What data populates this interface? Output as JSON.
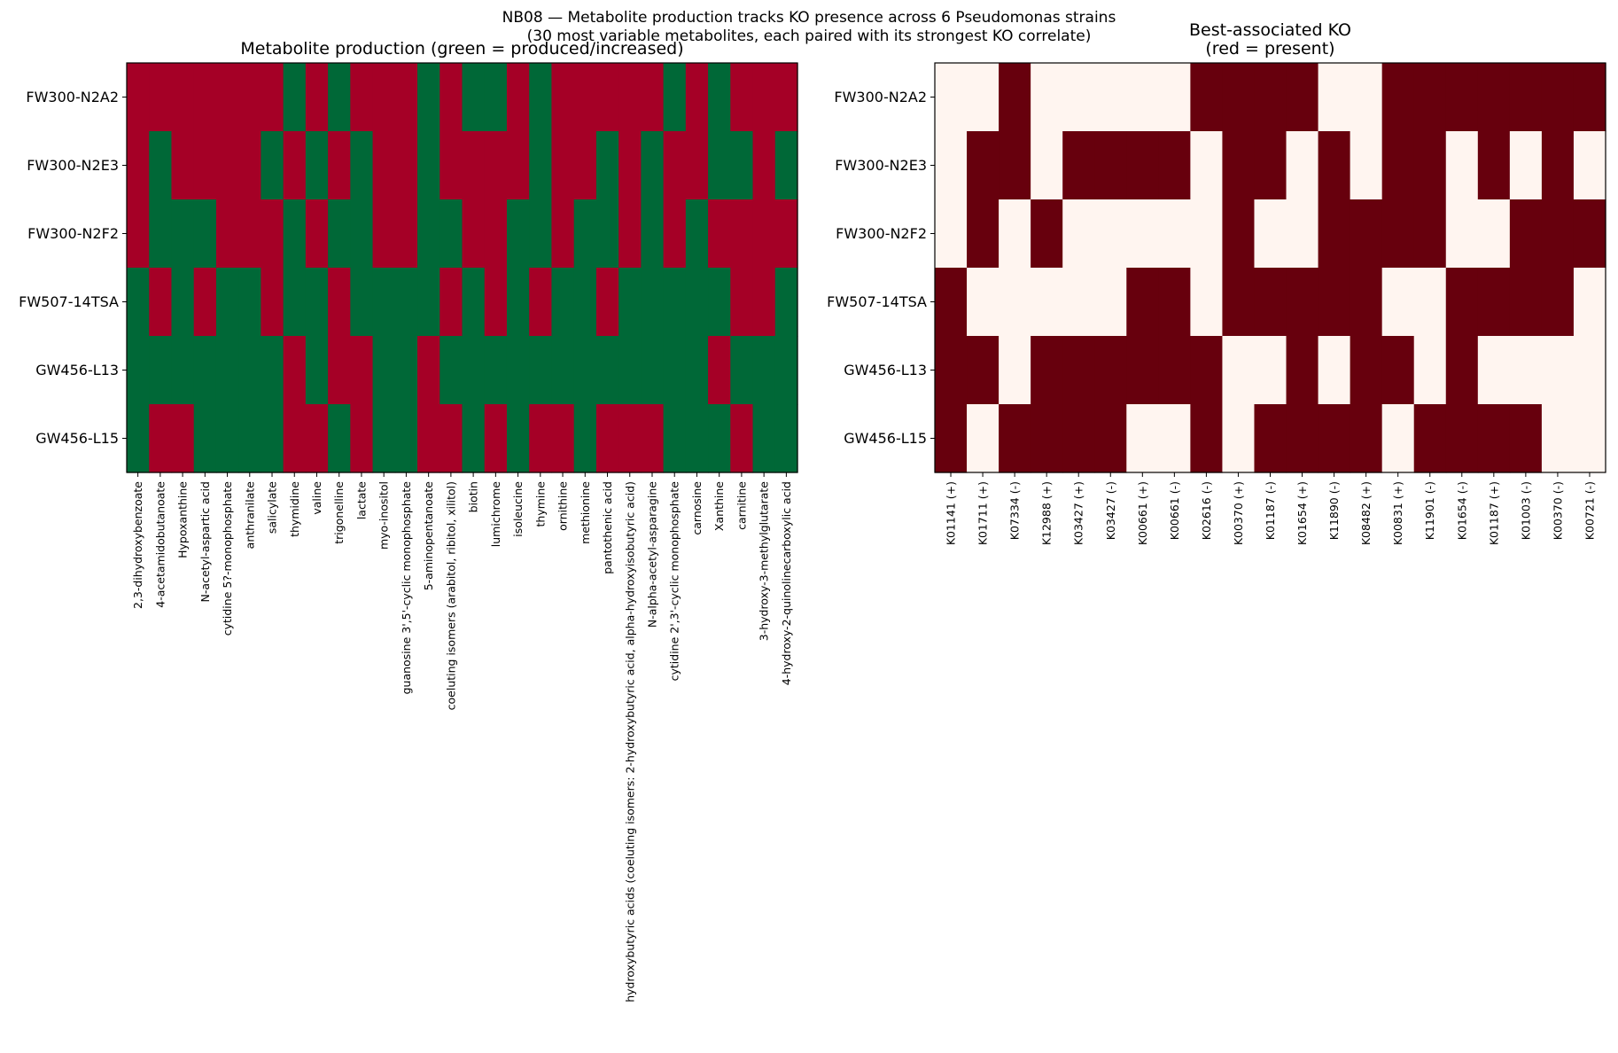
{
  "figure": {
    "suptitle_line1": "NB08 — Metabolite production tracks KO presence across 6 Pseudomonas strains",
    "suptitle_line2": "(30 most variable metabolites, each paired with its strongest KO correlate)"
  },
  "colors": {
    "produced": "#006837",
    "not_produced": "#a50026",
    "ko_present": "#67000d",
    "ko_absent": "#fff5f0"
  },
  "chart_data": [
    {
      "type": "heatmap",
      "title": "Metabolite production (green = produced/increased)",
      "rows": [
        "FW300-N2A2",
        "FW300-N2E3",
        "FW300-N2F2",
        "FW507-14TSA",
        "GW456-L13",
        "GW456-L15"
      ],
      "columns": [
        "2,3-dihydroxybenzoate",
        "4-acetamidobutanoate",
        "Hypoxanthine",
        "N-acetyl-aspartic acid",
        "cytidine 5?-monophosphate",
        "anthranilate",
        "salicylate",
        "thymidine",
        "valine",
        "trigonelline",
        "lactate",
        "myo-inositol",
        "guanosine 3',5'-cyclic monophosphate",
        "5-aminopentanoate",
        "coeluting isomers (arabitol, ribitol, xilitol)",
        "biotin",
        "lumichrome",
        "isoleucine",
        "thymine",
        "ornithine",
        "methionine",
        "pantothenic acid",
        "hydroxybutyric acids (coeluting isomers: 2-hydroxybutyric acid, alpha-hydroxyisobutyric acid)",
        "N-alpha-acetyl-asparagine",
        "cytidine 2',3'-cyclic monophosphate",
        "carnosine",
        "Xanthine",
        "carnitine",
        "3-hydroxy-3-methylglutarate",
        "4-hydroxy-2-quinolinecarboxylic acid"
      ],
      "values": [
        [
          0,
          0,
          0,
          0,
          0,
          0,
          0,
          1,
          0,
          1,
          0,
          0,
          0,
          1,
          0,
          1,
          1,
          0,
          1,
          0,
          0,
          0,
          0,
          0,
          1,
          0,
          1,
          0,
          0,
          0
        ],
        [
          0,
          1,
          0,
          0,
          0,
          0,
          1,
          0,
          1,
          0,
          1,
          0,
          0,
          1,
          0,
          0,
          0,
          0,
          1,
          0,
          0,
          1,
          0,
          1,
          0,
          0,
          1,
          1,
          0,
          1
        ],
        [
          0,
          1,
          1,
          1,
          0,
          0,
          0,
          1,
          0,
          1,
          1,
          0,
          0,
          1,
          1,
          0,
          0,
          1,
          1,
          0,
          1,
          1,
          0,
          1,
          0,
          1,
          0,
          0,
          0,
          0
        ],
        [
          1,
          0,
          1,
          0,
          1,
          1,
          0,
          1,
          1,
          0,
          1,
          1,
          1,
          1,
          0,
          1,
          0,
          1,
          0,
          1,
          1,
          0,
          1,
          1,
          1,
          1,
          1,
          0,
          0,
          1
        ],
        [
          1,
          1,
          1,
          1,
          1,
          1,
          1,
          0,
          1,
          0,
          0,
          1,
          1,
          0,
          1,
          1,
          1,
          1,
          1,
          1,
          1,
          1,
          1,
          1,
          1,
          1,
          0,
          1,
          1,
          1
        ],
        [
          1,
          0,
          0,
          1,
          1,
          1,
          1,
          0,
          0,
          1,
          0,
          1,
          1,
          0,
          0,
          1,
          0,
          1,
          0,
          0,
          1,
          0,
          0,
          0,
          1,
          1,
          1,
          0,
          1,
          1
        ]
      ],
      "legend": "green = produced/increased"
    },
    {
      "type": "heatmap",
      "title_line1": "Best-associated KO",
      "title_line2": "(red = present)",
      "rows": [
        "FW300-N2A2",
        "FW300-N2E3",
        "FW300-N2F2",
        "FW507-14TSA",
        "GW456-L13",
        "GW456-L15"
      ],
      "columns": [
        "K01141 (+)",
        "K01711 (+)",
        "K07334 (-)",
        "K12988 (+)",
        "K03427 (+)",
        "K03427 (-)",
        "K00661 (+)",
        "K00661 (-)",
        "K02616 (-)",
        "K00370 (+)",
        "K01187 (-)",
        "K01654 (+)",
        "K11890 (-)",
        "K08482 (+)",
        "K00831 (+)",
        "K11901 (-)",
        "K01654 (-)",
        "K01187 (+)",
        "K01003 (-)",
        "K00370 (-)",
        "K00721 (-)"
      ],
      "values": [
        [
          0,
          0,
          1,
          0,
          0,
          0,
          0,
          0,
          1,
          1,
          1,
          1,
          0,
          0,
          1,
          1,
          1,
          1,
          1,
          1,
          1
        ],
        [
          0,
          1,
          1,
          0,
          1,
          1,
          1,
          1,
          0,
          1,
          1,
          0,
          1,
          0,
          1,
          1,
          0,
          1,
          0,
          1,
          0
        ],
        [
          0,
          1,
          0,
          1,
          0,
          0,
          0,
          0,
          0,
          1,
          0,
          0,
          1,
          1,
          1,
          1,
          0,
          0,
          1,
          1,
          1
        ],
        [
          1,
          0,
          0,
          0,
          0,
          0,
          1,
          1,
          0,
          1,
          1,
          1,
          1,
          1,
          0,
          0,
          1,
          1,
          1,
          1,
          0
        ],
        [
          1,
          1,
          0,
          1,
          1,
          1,
          1,
          1,
          1,
          0,
          0,
          1,
          0,
          1,
          1,
          0,
          1,
          0,
          0,
          0,
          0
        ],
        [
          1,
          0,
          1,
          1,
          1,
          1,
          0,
          0,
          1,
          0,
          1,
          1,
          1,
          1,
          0,
          1,
          1,
          1,
          1,
          0,
          0
        ]
      ],
      "legend": "red = present"
    }
  ]
}
